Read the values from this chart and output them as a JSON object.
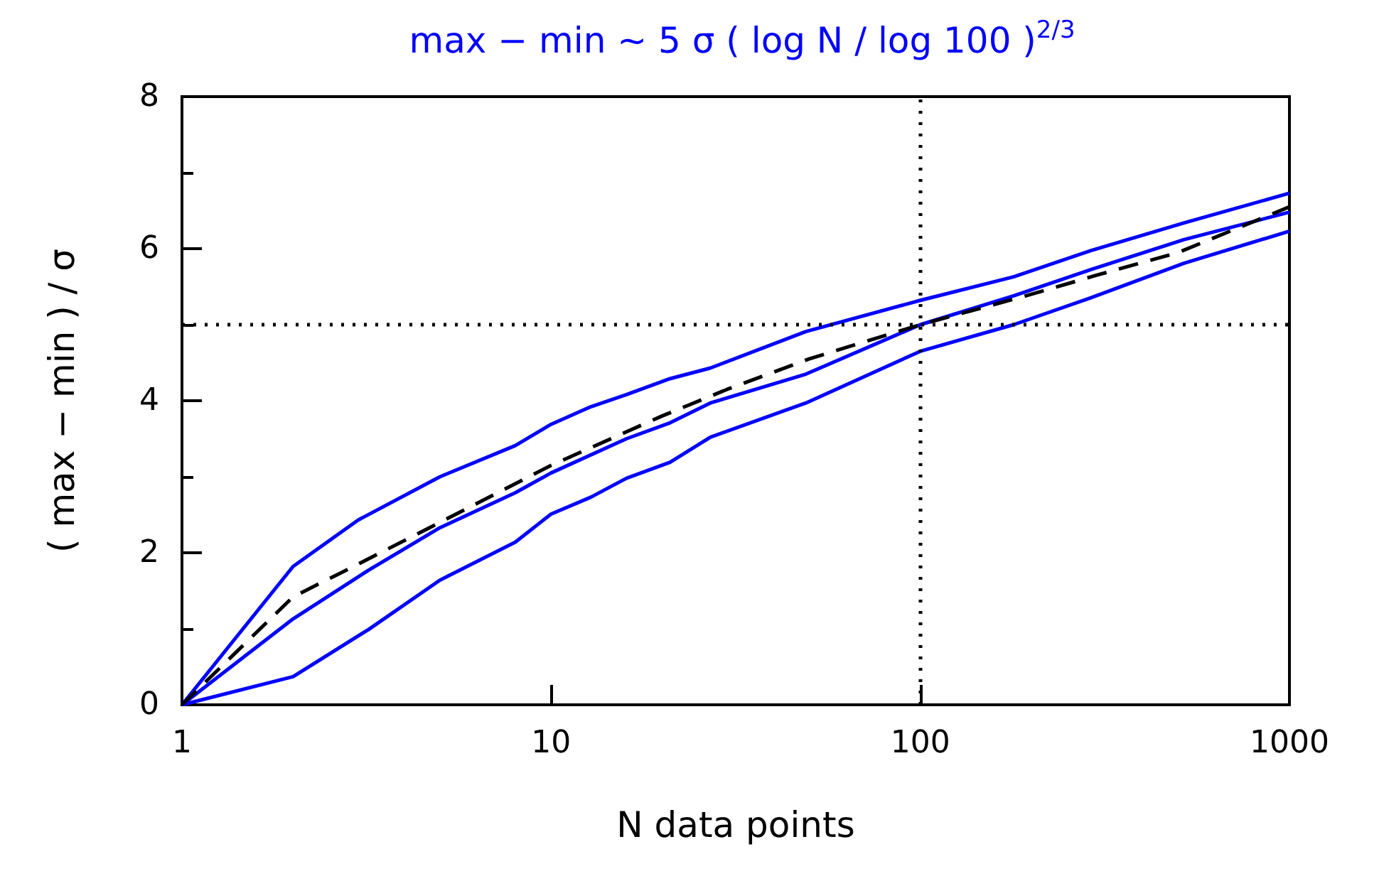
{
  "chart_data": {
    "type": "line",
    "title": "max − min ∼ 5 σ ( log N / log 100 )$^{2/3}$",
    "xlabel": "N data points",
    "ylabel": "( max − min ) / σ",
    "log": "x",
    "xlim": [
      1,
      1000
    ],
    "xticks": [
      1,
      10,
      100,
      1000
    ],
    "ylim": [
      0,
      8
    ],
    "yticks": [
      0,
      2,
      4,
      6,
      8
    ],
    "grid": false,
    "marker": "none",
    "ref_lines": [
      {
        "axis": "x",
        "value": 100,
        "color": "#000000",
        "line_style": "dotted"
      },
      {
        "axis": "y",
        "value": 5,
        "color": "#000000",
        "line_style": "dotted"
      }
    ],
    "series": [
      {
        "color": "#0000ff",
        "line_style": "solid",
        "x": [
          1,
          2,
          3,
          5,
          8,
          10,
          12.8,
          16,
          21,
          27,
          49,
          100,
          179,
          288,
          519,
          1000
        ],
        "values": [
          0,
          1.82,
          2.43,
          3.0,
          3.41,
          3.69,
          3.92,
          4.08,
          4.29,
          4.43,
          4.91,
          5.32,
          5.63,
          5.97,
          6.34,
          6.73
        ]
      },
      {
        "color": "#0000ff",
        "line_style": "solid",
        "x": [
          1,
          2,
          3.2,
          5,
          8,
          10,
          16,
          21,
          27,
          49,
          100,
          179,
          288,
          519,
          1000
        ],
        "values": [
          0,
          1.13,
          1.77,
          2.33,
          2.79,
          3.05,
          3.5,
          3.71,
          3.97,
          4.35,
          5.0,
          5.38,
          5.72,
          6.12,
          6.48
        ]
      },
      {
        "color": "#0000ff",
        "line_style": "solid",
        "x": [
          1,
          2,
          3.2,
          5,
          8,
          10,
          12.8,
          16,
          21,
          27,
          49,
          100,
          179,
          288,
          519,
          1000
        ],
        "values": [
          0,
          0.37,
          0.99,
          1.64,
          2.14,
          2.51,
          2.73,
          2.98,
          3.19,
          3.52,
          3.97,
          4.65,
          5.0,
          5.35,
          5.81,
          6.23
        ]
      },
      {
        "color": "#000000",
        "line_style": "dashed",
        "x": [
          1,
          2,
          3,
          5,
          10,
          20,
          30,
          50,
          100,
          200,
          300,
          500,
          1000
        ],
        "values": [
          0,
          1.42,
          1.85,
          2.4,
          3.15,
          3.8,
          4.15,
          4.55,
          5.0,
          5.4,
          5.65,
          5.95,
          6.55
        ]
      }
    ]
  }
}
